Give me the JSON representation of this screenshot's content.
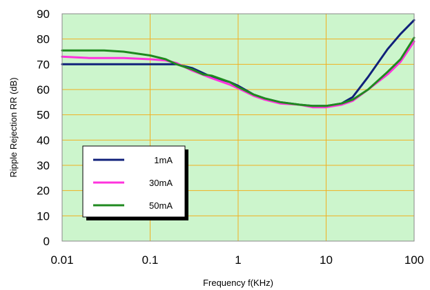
{
  "chart_data": {
    "type": "line",
    "title": "",
    "xlabel": "Frequency f(KHz)",
    "ylabel": "Ripple Rejection RR (dB)",
    "xscale": "log",
    "xlim": [
      0.01,
      100
    ],
    "ylim": [
      0,
      90
    ],
    "x_ticks": [
      "0.01",
      "0.1",
      "1",
      "10",
      "100"
    ],
    "y_ticks": [
      "0",
      "10",
      "20",
      "30",
      "40",
      "50",
      "60",
      "70",
      "80",
      "90"
    ],
    "grid": true,
    "plot_background": "#ccf5cc",
    "grid_color": "#f0b020",
    "legend_position": "bottom-left",
    "series": [
      {
        "name": "1mA",
        "color": "#10207a",
        "x": [
          0.01,
          0.02,
          0.05,
          0.1,
          0.2,
          0.3,
          0.5,
          0.8,
          1,
          1.5,
          2,
          3,
          5,
          7,
          10,
          15,
          20,
          30,
          50,
          70,
          100
        ],
        "y": [
          70,
          70,
          70,
          70,
          70,
          68.5,
          65,
          63,
          61.5,
          58,
          56.5,
          55,
          54,
          53.5,
          53.5,
          54.5,
          57,
          65,
          76,
          82,
          87.5
        ]
      },
      {
        "name": "30mA",
        "color": "#ff33dd",
        "x": [
          0.01,
          0.02,
          0.05,
          0.1,
          0.15,
          0.2,
          0.3,
          0.5,
          0.8,
          1,
          1.5,
          2,
          3,
          5,
          7,
          10,
          15,
          20,
          30,
          50,
          70,
          100
        ],
        "y": [
          73,
          72.5,
          72.5,
          72,
          71.5,
          70.5,
          67.5,
          64.5,
          62,
          60.5,
          57.5,
          56,
          54.5,
          54,
          53,
          53,
          54,
          55.5,
          60,
          66,
          71,
          79
        ]
      },
      {
        "name": "50mA",
        "color": "#1f8a1f",
        "x": [
          0.01,
          0.03,
          0.05,
          0.1,
          0.15,
          0.2,
          0.3,
          0.4,
          0.5,
          0.8,
          1,
          1.5,
          2,
          3,
          5,
          7,
          10,
          15,
          20,
          30,
          50,
          70,
          100
        ],
        "y": [
          75.5,
          75.5,
          75,
          73.5,
          72,
          70,
          68,
          66,
          65.5,
          63,
          61,
          58,
          56.5,
          55,
          54,
          53.5,
          53.5,
          54.5,
          56,
          60,
          67,
          72,
          80.5
        ]
      }
    ]
  }
}
